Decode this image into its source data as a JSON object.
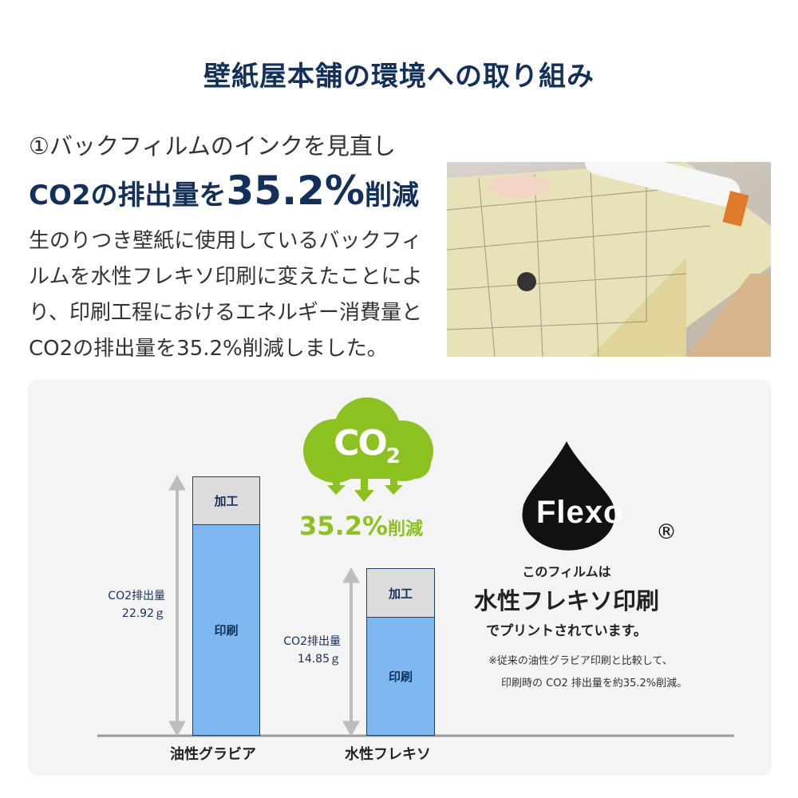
{
  "title": "壁紙屋本舗の環境への取り組み",
  "subheading": "①バックフィルムのインクを見直し",
  "headline": {
    "prefix": "CO2の排出量を",
    "value": "35.2%",
    "suffix": "削減"
  },
  "body": "生のりつき壁紙に使用しているバックフィルムを水性フレキソ印刷に変えたことにより、印刷工程におけるエネルギー消費量とCO2の排出量を35.2%削減しました。",
  "photo": {
    "description_icon": "wallpaper-roll-photo"
  },
  "infographic": {
    "colors": {
      "print": "#7db9f0",
      "process": "#dcdcdc",
      "green": "#8cc21f",
      "navy": "#13305a"
    },
    "bars": [
      {
        "category": "油性グラビア",
        "total_label": "CO2排出量",
        "total": "22.92ｇ",
        "total_value": 22.92,
        "segments": {
          "process": "加工",
          "print": "印刷"
        }
      },
      {
        "category": "水性フレキソ",
        "total_label": "CO2排出量",
        "total": "14.85ｇ",
        "total_value": 14.85,
        "segments": {
          "process": "加工",
          "print": "印刷"
        }
      }
    ],
    "cloud_text": "CO2",
    "cloud_sub": "2",
    "reduction": {
      "value": "35.2%",
      "suffix": "削減"
    },
    "logo": {
      "text": "Flexo",
      "mark": "®"
    },
    "caption1": "このフィルムは",
    "caption2": "水性フレキソ印刷",
    "caption3": "でプリントされています。",
    "note1": "※従来の油性グラビア印刷と比較して、",
    "note2": "印刷時の CO2 排出量を約35.2%削減。"
  }
}
